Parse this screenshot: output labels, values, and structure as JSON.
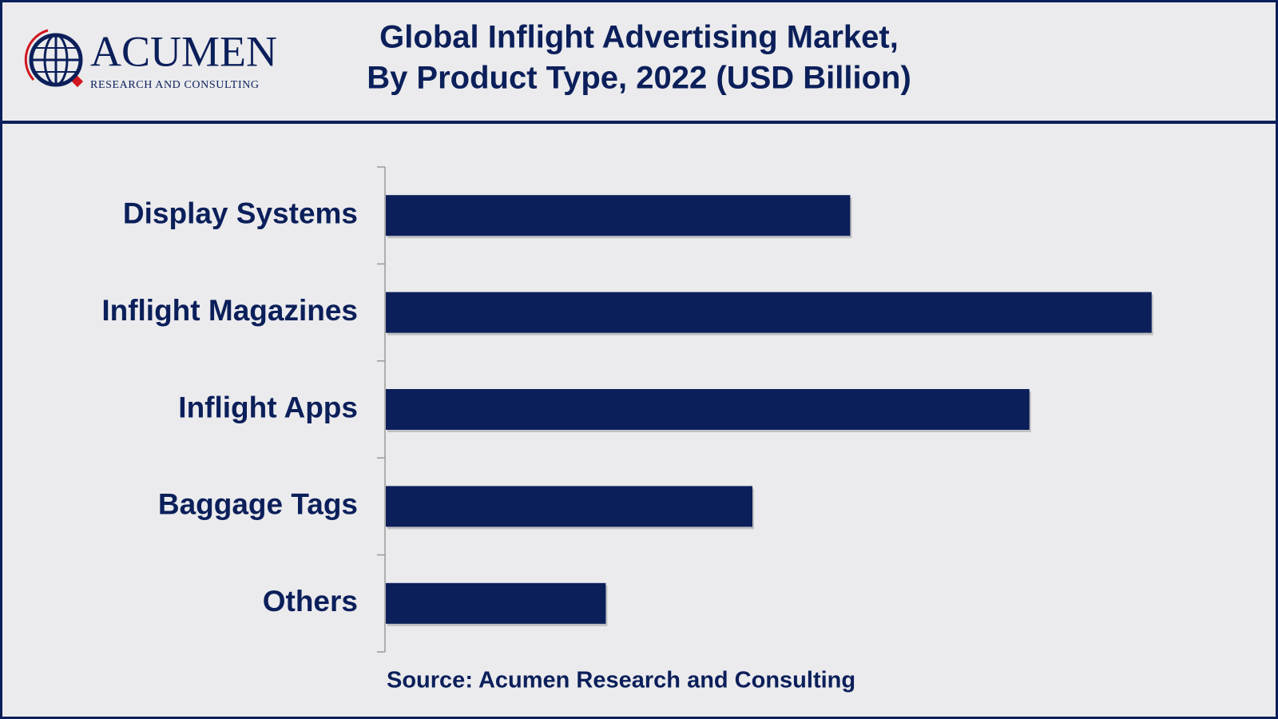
{
  "brand": {
    "name": "ACUMEN",
    "tagline": "RESEARCH AND CONSULTING"
  },
  "chart_data": {
    "type": "bar",
    "orientation": "horizontal",
    "title": [
      "Global Inflight Advertising Market,",
      "By Product Type, 2022 (USD Billion)"
    ],
    "categories": [
      "Display Systems",
      "Inflight Magazines",
      "Inflight Apps",
      "Baggage Tags",
      "Others"
    ],
    "values": [
      0.57,
      0.94,
      0.79,
      0.45,
      0.27
    ],
    "color": "#0b1f5a",
    "xlim": [
      0,
      1
    ],
    "source": "Source: Acumen Research and Consulting"
  }
}
